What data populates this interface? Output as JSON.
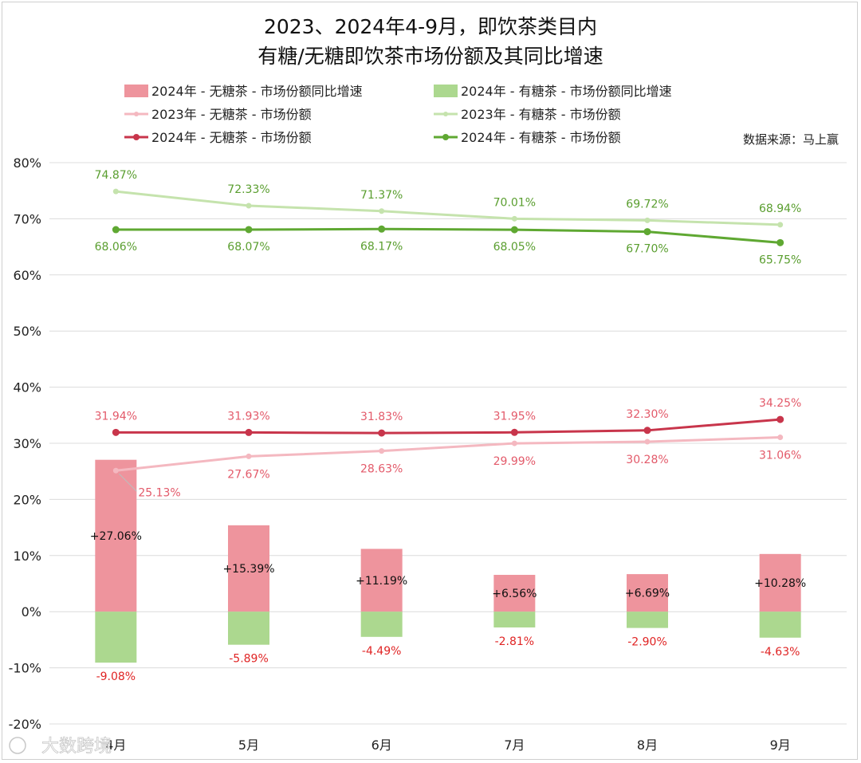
{
  "chart_data": {
    "type": "bar",
    "title_lines": [
      "2023、2024年4-9月，即饮茶类目内",
      "有糖/无糖即饮茶市场份额及其同比增速"
    ],
    "source": "数据来源：马上赢",
    "watermark": "大数跨境",
    "categories": [
      "4月",
      "5月",
      "6月",
      "7月",
      "8月",
      "9月"
    ],
    "y_ticks": [
      "80%",
      "70%",
      "60%",
      "50%",
      "40%",
      "30%",
      "20%",
      "10%",
      "0%",
      "-10%",
      "-20%"
    ],
    "ylim": [
      -20,
      80
    ],
    "grid": true,
    "legend_position": "top",
    "colors": {
      "bar_unsweet": "#ee949d",
      "bar_sweet": "#acd88f",
      "line_unsweet_2023": "#f4b8c0",
      "line_sweet_2023": "#c5e3ad",
      "line_unsweet_2024": "#c8354b",
      "line_sweet_2024": "#5fa832",
      "label_unsweet": "#e35a6a",
      "label_sweet": "#5a9e2f",
      "label_neg": "#e02424"
    },
    "series": [
      {
        "key": "bar_unsweet",
        "name": "2024年 - 无糖茶 - 市场份额同比增速",
        "kind": "bar",
        "values": [
          27.06,
          15.39,
          11.19,
          6.56,
          6.69,
          10.28
        ],
        "labels": [
          "+27.06%",
          "+15.39%",
          "+11.19%",
          "+6.56%",
          "+6.69%",
          "+10.28%"
        ]
      },
      {
        "key": "bar_sweet",
        "name": "2024年 - 有糖茶 - 市场份额同比增速",
        "kind": "bar",
        "values": [
          -9.08,
          -5.89,
          -4.49,
          -2.81,
          -2.9,
          -4.63
        ],
        "labels": [
          "-9.08%",
          "-5.89%",
          "-4.49%",
          "-2.81%",
          "-2.90%",
          "-4.63%"
        ]
      },
      {
        "key": "line_unsweet_2023",
        "name": "2023年 - 无糖茶 - 市场份额",
        "kind": "line",
        "values": [
          25.13,
          27.67,
          28.63,
          29.99,
          30.28,
          31.06
        ],
        "labels": [
          "25.13%",
          "27.67%",
          "28.63%",
          "29.99%",
          "30.28%",
          "31.06%"
        ]
      },
      {
        "key": "line_sweet_2023",
        "name": "2023年 - 有糖茶 - 市场份额",
        "kind": "line",
        "values": [
          74.87,
          72.33,
          71.37,
          70.01,
          69.72,
          68.94
        ],
        "labels": [
          "74.87%",
          "72.33%",
          "71.37%",
          "70.01%",
          "69.72%",
          "68.94%"
        ]
      },
      {
        "key": "line_unsweet_2024",
        "name": "2024年 - 无糖茶 - 市场份额",
        "kind": "line",
        "values": [
          31.94,
          31.93,
          31.83,
          31.95,
          32.3,
          34.25
        ],
        "labels": [
          "31.94%",
          "31.93%",
          "31.83%",
          "31.95%",
          "32.30%",
          "34.25%"
        ]
      },
      {
        "key": "line_sweet_2024",
        "name": "2024年 - 有糖茶 - 市场份额",
        "kind": "line",
        "values": [
          68.06,
          68.07,
          68.17,
          68.05,
          67.7,
          65.75
        ],
        "labels": [
          "68.06%",
          "68.07%",
          "68.17%",
          "68.05%",
          "67.70%",
          "65.75%"
        ]
      }
    ]
  }
}
